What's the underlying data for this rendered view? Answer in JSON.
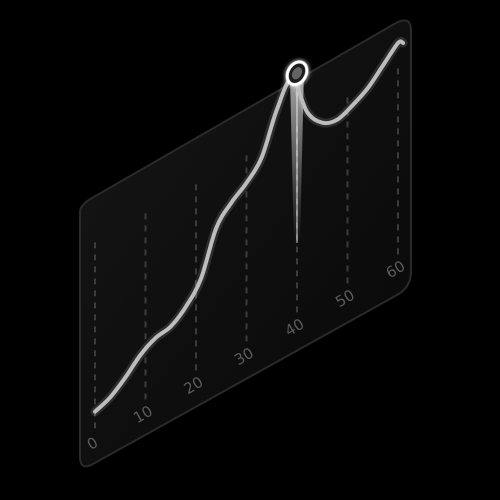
{
  "chart_data": {
    "type": "line",
    "x_ticks": [
      "0",
      "10",
      "20",
      "30",
      "40",
      "50",
      "60"
    ],
    "x": [
      0,
      3,
      6,
      9,
      12,
      15,
      18,
      21,
      24,
      27,
      30,
      33,
      36,
      39,
      42,
      45,
      48,
      51,
      54,
      57,
      60,
      61
    ],
    "series": [
      {
        "values": [
          3,
          5,
          9,
          14,
          17,
          18,
          22,
          29,
          44,
          50,
          54,
          60,
          74,
          82,
          67,
          60,
          58,
          60,
          63,
          68,
          73,
          72
        ]
      }
    ],
    "highlight": {
      "x": 40,
      "y": 83
    },
    "xlim": [
      0,
      61
    ],
    "ylim": [
      0,
      100
    ],
    "grid": "dashed vertical lines at each tick",
    "colors": {
      "background": "#000000",
      "panel": "#0c0c0c",
      "panel_border": "#2a2a2a",
      "line": "#bdbdbd",
      "grid": "#3c3c3c",
      "tick_label": "#5c5c5c",
      "highlight": "#ffffff"
    }
  }
}
